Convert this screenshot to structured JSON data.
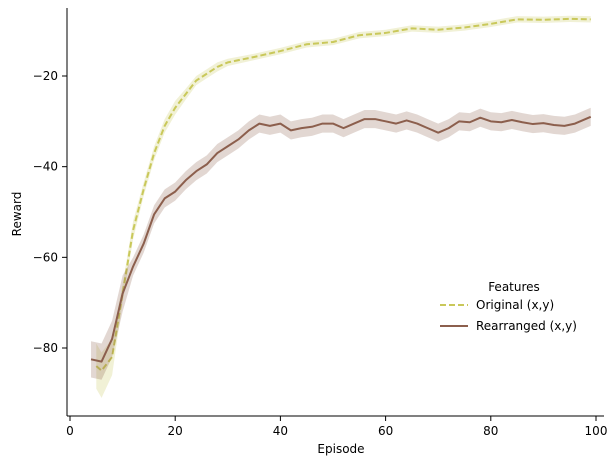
{
  "chart_data": {
    "type": "line",
    "title": "",
    "xlabel": "Episode",
    "ylabel": "Reward",
    "xlim": [
      0,
      100
    ],
    "ylim": [
      -95,
      -5
    ],
    "x_ticks": [
      0,
      20,
      40,
      60,
      80,
      100
    ],
    "y_ticks": [
      -80,
      -60,
      -40,
      -20
    ],
    "grid": false,
    "legend": {
      "title": "Features",
      "placement": "center-right"
    },
    "series": [
      {
        "name": "Original (x,y)",
        "color": "#c9c85a",
        "line_style": "dashed",
        "x": [
          5,
          6,
          8,
          10,
          12,
          14,
          16,
          18,
          20,
          22,
          24,
          26,
          28,
          30,
          35,
          40,
          45,
          50,
          55,
          60,
          65,
          70,
          75,
          80,
          85,
          90,
          95,
          99
        ],
        "y": [
          -84,
          -85,
          -82,
          -68,
          -54,
          -45,
          -37,
          -31,
          -27,
          -24,
          -21,
          -19.5,
          -18,
          -17,
          -15.8,
          -14.5,
          -13,
          -12.5,
          -11,
          -10.5,
          -9.5,
          -9.8,
          -9.3,
          -8.5,
          -7.5,
          -7.6,
          -7.4,
          -7.5
        ],
        "band_low": [
          -89,
          -91,
          -86,
          -70,
          -56,
          -46.5,
          -38.5,
          -32.5,
          -28.5,
          -25.2,
          -22,
          -20.5,
          -19,
          -17.8,
          -16.5,
          -15.2,
          -13.7,
          -13.2,
          -11.7,
          -11.2,
          -10.2,
          -10.5,
          -10,
          -9.2,
          -8.2,
          -8.3,
          -8.1,
          -8.2
        ],
        "band_high": [
          -79,
          -81,
          -78,
          -66,
          -52,
          -43.5,
          -35.5,
          -29.5,
          -25.5,
          -22.8,
          -20,
          -18.5,
          -17,
          -16.2,
          -15.1,
          -13.8,
          -12.3,
          -11.8,
          -10.3,
          -9.8,
          -8.8,
          -9.1,
          -8.6,
          -7.8,
          -6.8,
          -6.9,
          -6.7,
          -6.8
        ]
      },
      {
        "name": "Rearranged (x,y)",
        "color": "#8c5f4d",
        "line_style": "solid",
        "x": [
          4,
          6,
          8,
          10,
          12,
          14,
          16,
          18,
          20,
          22,
          24,
          26,
          28,
          30,
          32,
          34,
          36,
          38,
          40,
          42,
          44,
          46,
          48,
          50,
          52,
          54,
          56,
          58,
          60,
          62,
          64,
          66,
          68,
          70,
          72,
          74,
          76,
          78,
          80,
          82,
          84,
          86,
          88,
          90,
          92,
          94,
          96,
          99
        ],
        "y": [
          -82.5,
          -83,
          -78,
          -68,
          -62,
          -57,
          -50.5,
          -47,
          -45.5,
          -43,
          -41,
          -39.5,
          -37,
          -35.5,
          -34,
          -32,
          -30.5,
          -31,
          -30.5,
          -32,
          -31.5,
          -31.2,
          -30.5,
          -30.5,
          -31.5,
          -30.5,
          -29.5,
          -29.5,
          -30,
          -30.5,
          -29.8,
          -30.5,
          -31.5,
          -32.5,
          -31.5,
          -30,
          -30.2,
          -29.2,
          -30,
          -30.2,
          -29.7,
          -30.2,
          -30.6,
          -30.4,
          -30.8,
          -31,
          -30.5,
          -29
        ]
      }
    ]
  }
}
